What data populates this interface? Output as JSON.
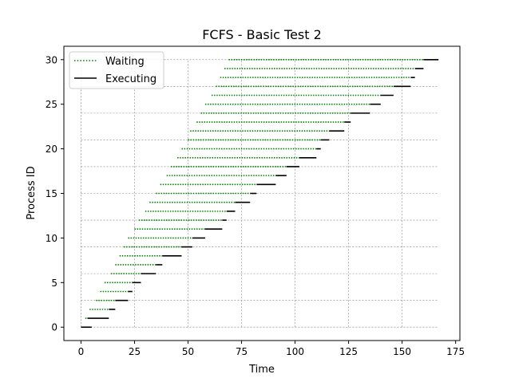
{
  "chart_data": {
    "type": "gantt",
    "title": "FCFS - Basic Test 2",
    "xlabel": "Time",
    "ylabel": "Process ID",
    "xlim": [
      -8,
      177
    ],
    "ylim": [
      -1.5,
      31.5
    ],
    "xticks": [
      0,
      25,
      50,
      75,
      100,
      125,
      150,
      175
    ],
    "yticks": [
      0,
      5,
      10,
      15,
      20,
      25,
      30
    ],
    "grid": true,
    "grid_style": "dashed",
    "legend_placement": "top-left",
    "legend": [
      {
        "label": "Waiting",
        "style": "dotted",
        "color": "#008000"
      },
      {
        "label": "Executing",
        "style": "solid",
        "color": "#000000"
      }
    ],
    "wait_color": "#008000",
    "exec_color": "#000000",
    "processes": [
      {
        "id": 0,
        "arrival": 0,
        "start": 0,
        "end": 5
      },
      {
        "id": 1,
        "arrival": 2,
        "start": 3,
        "end": 13
      },
      {
        "id": 2,
        "arrival": 4,
        "start": 13,
        "end": 16
      },
      {
        "id": 3,
        "arrival": 7,
        "start": 16,
        "end": 22
      },
      {
        "id": 4,
        "arrival": 9,
        "start": 22,
        "end": 24
      },
      {
        "id": 5,
        "arrival": 11,
        "start": 24,
        "end": 28
      },
      {
        "id": 6,
        "arrival": 14,
        "start": 28,
        "end": 35
      },
      {
        "id": 7,
        "arrival": 16,
        "start": 35,
        "end": 38
      },
      {
        "id": 8,
        "arrival": 18,
        "start": 38,
        "end": 47
      },
      {
        "id": 9,
        "arrival": 20,
        "start": 47,
        "end": 52
      },
      {
        "id": 10,
        "arrival": 22,
        "start": 52,
        "end": 58
      },
      {
        "id": 11,
        "arrival": 25,
        "start": 58,
        "end": 66
      },
      {
        "id": 12,
        "arrival": 27,
        "start": 66,
        "end": 68
      },
      {
        "id": 13,
        "arrival": 30,
        "start": 68,
        "end": 72
      },
      {
        "id": 14,
        "arrival": 32,
        "start": 72,
        "end": 79
      },
      {
        "id": 15,
        "arrival": 35,
        "start": 79,
        "end": 82
      },
      {
        "id": 16,
        "arrival": 37,
        "start": 82,
        "end": 91
      },
      {
        "id": 17,
        "arrival": 40,
        "start": 91,
        "end": 96
      },
      {
        "id": 18,
        "arrival": 42,
        "start": 96,
        "end": 102
      },
      {
        "id": 19,
        "arrival": 45,
        "start": 102,
        "end": 110
      },
      {
        "id": 20,
        "arrival": 47,
        "start": 110,
        "end": 112
      },
      {
        "id": 21,
        "arrival": 50,
        "start": 112,
        "end": 116
      },
      {
        "id": 22,
        "arrival": 51,
        "start": 116,
        "end": 123
      },
      {
        "id": 23,
        "arrival": 54,
        "start": 123,
        "end": 126
      },
      {
        "id": 24,
        "arrival": 56,
        "start": 126,
        "end": 135
      },
      {
        "id": 25,
        "arrival": 58,
        "start": 135,
        "end": 140
      },
      {
        "id": 26,
        "arrival": 61,
        "start": 140,
        "end": 146
      },
      {
        "id": 27,
        "arrival": 63,
        "start": 146,
        "end": 154
      },
      {
        "id": 28,
        "arrival": 65,
        "start": 154,
        "end": 156
      },
      {
        "id": 29,
        "arrival": 67,
        "start": 156,
        "end": 160
      },
      {
        "id": 30,
        "arrival": 69,
        "start": 160,
        "end": 167
      }
    ]
  }
}
